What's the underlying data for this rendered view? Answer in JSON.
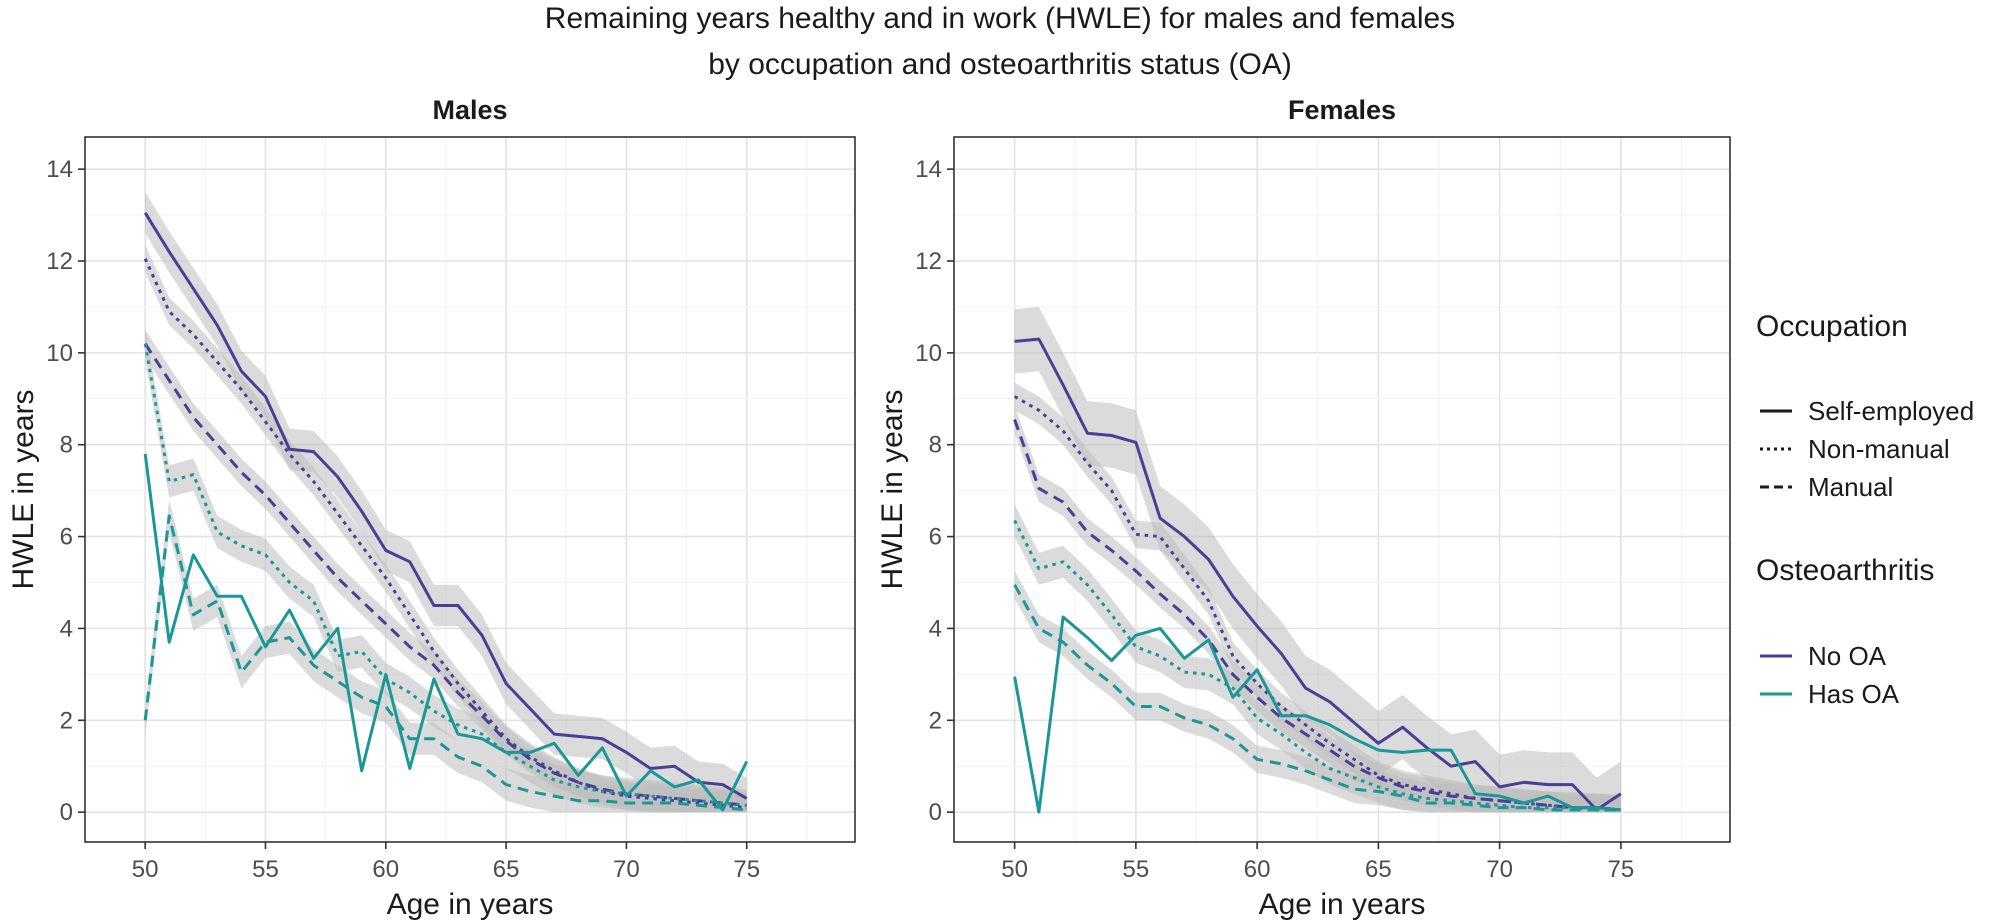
{
  "chart_data": {
    "type": "line",
    "title": [
      "Remaining years healthy and in work (HWLE) for males and females",
      "by occupation and osteoarthritis status (OA)"
    ],
    "xlabel": "Age in years",
    "ylabel": "HWLE in years",
    "xlim": [
      47.5,
      79.5
    ],
    "ylim": [
      -0.65,
      14.7
    ],
    "xticks": [
      "50",
      "55",
      "60",
      "65",
      "70",
      "75"
    ],
    "yticks": [
      "0",
      "2",
      "4",
      "6",
      "8",
      "10",
      "12",
      "14"
    ],
    "grid": true,
    "colors": {
      "No OA": "#4a3f98",
      "Has OA": "#1b9797",
      "band": "#bdbdbd"
    },
    "legend": {
      "position": "right",
      "occupation_title": "Occupation",
      "occupation_items": [
        {
          "label": "Self-employed",
          "dash": "solid"
        },
        {
          "label": "Non-manual",
          "dash": "dotted"
        },
        {
          "label": "Manual",
          "dash": "dashed"
        }
      ],
      "oa_title": "Osteoarthritis",
      "oa_items": [
        {
          "label": "No OA",
          "color_key": "No OA"
        },
        {
          "label": "Has OA",
          "color_key": "Has OA"
        }
      ]
    },
    "x": [
      50,
      51,
      52,
      53,
      54,
      55,
      56,
      57,
      58,
      59,
      60,
      61,
      62,
      63,
      64,
      65,
      66,
      67,
      68,
      69,
      70,
      71,
      72,
      73,
      74,
      75
    ],
    "panels": [
      {
        "name": "Males",
        "series": [
          {
            "occupation": "Self-employed",
            "oa": "No OA",
            "band": 0.45,
            "values": [
              13.05,
              12.2,
              11.4,
              10.6,
              9.6,
              9.05,
              7.9,
              7.85,
              7.3,
              6.55,
              5.7,
              5.45,
              4.5,
              4.5,
              3.85,
              2.8,
              2.25,
              1.7,
              1.65,
              1.6,
              1.3,
              0.95,
              1.0,
              0.65,
              0.6,
              0.3
            ]
          },
          {
            "occupation": "Non-manual",
            "oa": "No OA",
            "band": 0.3,
            "values": [
              12.05,
              10.9,
              10.4,
              9.8,
              9.2,
              8.5,
              7.8,
              7.2,
              6.5,
              5.8,
              5.1,
              4.3,
              3.5,
              2.8,
              2.2,
              1.6,
              1.2,
              0.9,
              0.65,
              0.45,
              0.35,
              0.3,
              0.25,
              0.2,
              0.15,
              0.1
            ]
          },
          {
            "occupation": "Manual",
            "oa": "No OA",
            "band": 0.3,
            "values": [
              10.2,
              9.4,
              8.6,
              8.0,
              7.4,
              6.9,
              6.3,
              5.7,
              5.1,
              4.6,
              4.1,
              3.6,
              3.2,
              2.6,
              2.1,
              1.55,
              1.15,
              0.85,
              0.65,
              0.5,
              0.4,
              0.35,
              0.3,
              0.25,
              0.2,
              0.15
            ]
          },
          {
            "occupation": "Self-employed",
            "oa": "Has OA",
            "band": 0,
            "values": [
              7.8,
              3.7,
              5.6,
              4.7,
              4.7,
              3.6,
              4.4,
              3.35,
              4.0,
              0.9,
              3.0,
              0.95,
              2.9,
              1.7,
              1.6,
              1.3,
              1.3,
              1.5,
              0.8,
              1.4,
              0.35,
              0.9,
              0.55,
              0.7,
              0.05,
              1.1
            ]
          },
          {
            "occupation": "Non-manual",
            "oa": "Has OA",
            "band": 0.35,
            "values": [
              10.2,
              7.2,
              7.35,
              6.1,
              5.8,
              5.6,
              5.0,
              4.6,
              3.4,
              3.5,
              2.9,
              2.6,
              2.2,
              1.9,
              1.7,
              1.3,
              1.0,
              0.7,
              0.55,
              0.45,
              0.4,
              0.35,
              0.3,
              0.25,
              0.2,
              0.15
            ]
          },
          {
            "occupation": "Manual",
            "oa": "Has OA",
            "band": 0.35,
            "values": [
              2.0,
              6.45,
              4.3,
              4.6,
              3.05,
              3.7,
              3.8,
              3.2,
              2.85,
              2.5,
              2.3,
              1.6,
              1.6,
              1.2,
              1.0,
              0.6,
              0.45,
              0.35,
              0.25,
              0.25,
              0.2,
              0.2,
              0.2,
              0.15,
              0.1,
              0.05
            ]
          }
        ]
      },
      {
        "name": "Females",
        "series": [
          {
            "occupation": "Self-employed",
            "oa": "No OA",
            "band": 0.7,
            "values": [
              10.25,
              10.3,
              9.3,
              8.25,
              8.2,
              8.05,
              6.4,
              6.0,
              5.5,
              4.7,
              4.05,
              3.45,
              2.7,
              2.4,
              1.95,
              1.5,
              1.85,
              1.4,
              1.0,
              1.1,
              0.55,
              0.65,
              0.6,
              0.6,
              0.05,
              0.4
            ]
          },
          {
            "occupation": "Non-manual",
            "oa": "No OA",
            "band": 0.3,
            "values": [
              9.05,
              8.75,
              8.3,
              7.6,
              7.0,
              6.05,
              6.0,
              5.3,
              4.6,
              3.4,
              2.8,
              2.3,
              1.9,
              1.5,
              1.15,
              0.8,
              0.6,
              0.5,
              0.4,
              0.3,
              0.25,
              0.2,
              0.15,
              0.1,
              0.1,
              0.05
            ]
          },
          {
            "occupation": "Manual",
            "oa": "No OA",
            "band": 0.3,
            "values": [
              8.55,
              7.05,
              6.75,
              6.1,
              5.7,
              5.25,
              4.75,
              4.3,
              3.75,
              3.0,
              2.5,
              2.05,
              1.7,
              1.35,
              1.0,
              0.75,
              0.55,
              0.45,
              0.35,
              0.3,
              0.25,
              0.2,
              0.15,
              0.1,
              0.1,
              0.05
            ]
          },
          {
            "occupation": "Self-employed",
            "oa": "Has OA",
            "band": 0,
            "values": [
              2.95,
              0.0,
              4.25,
              3.8,
              3.3,
              3.85,
              4.0,
              3.35,
              3.75,
              2.5,
              3.1,
              2.1,
              2.1,
              1.9,
              1.6,
              1.35,
              1.3,
              1.35,
              1.35,
              0.4,
              0.35,
              0.2,
              0.35,
              0.1,
              0.1,
              0.05
            ]
          },
          {
            "occupation": "Non-manual",
            "oa": "Has OA",
            "band": 0.35,
            "values": [
              6.35,
              5.3,
              5.45,
              4.95,
              4.3,
              3.6,
              3.4,
              3.05,
              3.0,
              2.7,
              2.05,
              1.7,
              1.3,
              0.95,
              0.75,
              0.55,
              0.4,
              0.3,
              0.25,
              0.2,
              0.15,
              0.1,
              0.1,
              0.1,
              0.05,
              0.05
            ]
          },
          {
            "occupation": "Manual",
            "oa": "Has OA",
            "band": 0.3,
            "values": [
              4.95,
              4.0,
              3.7,
              3.2,
              2.8,
              2.3,
              2.3,
              2.05,
              1.9,
              1.6,
              1.15,
              1.05,
              0.9,
              0.7,
              0.5,
              0.45,
              0.35,
              0.2,
              0.2,
              0.15,
              0.1,
              0.1,
              0.05,
              0.05,
              0.05,
              0.05
            ]
          }
        ]
      }
    ]
  }
}
